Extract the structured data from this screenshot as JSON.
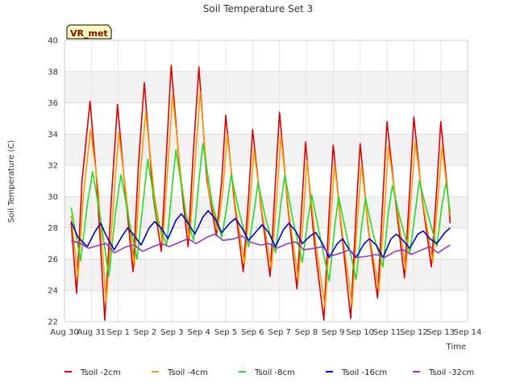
{
  "chart_data": {
    "type": "line",
    "title": "Soil Temperature Set 3",
    "xlabel": "Time",
    "ylabel": "Soil Temperature (C)",
    "badge": "VR_met",
    "ylim": [
      22,
      40
    ],
    "yticks": [
      "22",
      "24",
      "26",
      "28",
      "30",
      "32",
      "34",
      "36",
      "38",
      "40"
    ],
    "x_range": [
      0,
      15
    ],
    "xtick_labels": [
      "Aug 30",
      "Aug 31",
      "Sep 1",
      "Sep 2",
      "Sep 3",
      "Sep 4",
      "Sep 5",
      "Sep 6",
      "Sep 7",
      "Sep 8",
      "Sep 9",
      "Sep 10",
      "Sep 11",
      "Sep 12",
      "Sep 13",
      "Sep 14"
    ],
    "grid": true,
    "legend_position": "bottom",
    "series": [
      {
        "name": "Tsoil -2cm",
        "color": "#dd0000",
        "points": [
          [
            0.25,
            28.3
          ],
          [
            0.45,
            23.8
          ],
          [
            0.65,
            31.0
          ],
          [
            0.95,
            36.1
          ],
          [
            1.2,
            31.0
          ],
          [
            1.5,
            22.1
          ],
          [
            1.75,
            30.0
          ],
          [
            1.97,
            35.9
          ],
          [
            2.25,
            30.5
          ],
          [
            2.55,
            25.2
          ],
          [
            2.75,
            32.0
          ],
          [
            2.97,
            37.3
          ],
          [
            3.3,
            30.0
          ],
          [
            3.6,
            26.5
          ],
          [
            3.8,
            33.0
          ],
          [
            3.97,
            38.4
          ],
          [
            4.3,
            31.5
          ],
          [
            4.6,
            26.8
          ],
          [
            4.8,
            33.0
          ],
          [
            5.0,
            38.3
          ],
          [
            5.3,
            31.0
          ],
          [
            5.65,
            27.5
          ],
          [
            5.85,
            31.0
          ],
          [
            6.0,
            35.2
          ],
          [
            6.3,
            30.0
          ],
          [
            6.65,
            25.2
          ],
          [
            6.85,
            30.0
          ],
          [
            7.0,
            34.3
          ],
          [
            7.3,
            29.5
          ],
          [
            7.65,
            24.9
          ],
          [
            7.85,
            31.0
          ],
          [
            8.0,
            35.4
          ],
          [
            8.3,
            29.5
          ],
          [
            8.65,
            24.1
          ],
          [
            8.85,
            30.0
          ],
          [
            8.97,
            33.5
          ],
          [
            9.3,
            27.0
          ],
          [
            9.65,
            22.1
          ],
          [
            9.85,
            29.0
          ],
          [
            10.0,
            33.3
          ],
          [
            10.3,
            28.0
          ],
          [
            10.65,
            22.2
          ],
          [
            10.85,
            29.0
          ],
          [
            11.0,
            33.4
          ],
          [
            11.3,
            28.0
          ],
          [
            11.65,
            23.5
          ],
          [
            11.85,
            30.0
          ],
          [
            12.0,
            34.8
          ],
          [
            12.3,
            30.0
          ],
          [
            12.65,
            24.8
          ],
          [
            12.85,
            30.5
          ],
          [
            13.0,
            35.1
          ],
          [
            13.3,
            30.0
          ],
          [
            13.65,
            25.5
          ],
          [
            13.85,
            30.5
          ],
          [
            14.0,
            34.8
          ],
          [
            14.3,
            29.5
          ],
          [
            14.35,
            28.3
          ]
        ]
      },
      {
        "name": "Tsoil -4cm",
        "color": "#ff9900",
        "points": [
          [
            0.25,
            28.8
          ],
          [
            0.5,
            24.8
          ],
          [
            0.7,
            30.0
          ],
          [
            0.97,
            34.3
          ],
          [
            1.25,
            30.5
          ],
          [
            1.55,
            23.2
          ],
          [
            1.8,
            29.0
          ],
          [
            2.02,
            34.1
          ],
          [
            2.3,
            30.0
          ],
          [
            2.6,
            25.5
          ],
          [
            2.8,
            31.0
          ],
          [
            3.02,
            35.4
          ],
          [
            3.35,
            30.0
          ],
          [
            3.65,
            27.0
          ],
          [
            3.85,
            32.0
          ],
          [
            4.02,
            36.5
          ],
          [
            4.35,
            31.0
          ],
          [
            4.65,
            27.2
          ],
          [
            4.85,
            32.0
          ],
          [
            5.05,
            36.7
          ],
          [
            5.35,
            30.5
          ],
          [
            5.7,
            27.8
          ],
          [
            5.9,
            30.5
          ],
          [
            6.05,
            34.0
          ],
          [
            6.35,
            29.5
          ],
          [
            6.7,
            25.7
          ],
          [
            6.9,
            29.5
          ],
          [
            7.05,
            33.0
          ],
          [
            7.35,
            29.0
          ],
          [
            7.7,
            25.4
          ],
          [
            7.9,
            30.0
          ],
          [
            8.05,
            33.9
          ],
          [
            8.35,
            29.0
          ],
          [
            8.7,
            24.7
          ],
          [
            8.9,
            29.0
          ],
          [
            9.02,
            32.3
          ],
          [
            9.35,
            27.0
          ],
          [
            9.7,
            22.9
          ],
          [
            9.9,
            28.5
          ],
          [
            10.05,
            32.0
          ],
          [
            10.35,
            27.5
          ],
          [
            10.7,
            23.0
          ],
          [
            10.9,
            28.5
          ],
          [
            11.05,
            32.0
          ],
          [
            11.35,
            27.5
          ],
          [
            11.7,
            24.0
          ],
          [
            11.9,
            29.0
          ],
          [
            12.05,
            33.2
          ],
          [
            12.35,
            29.5
          ],
          [
            12.7,
            25.3
          ],
          [
            12.9,
            30.0
          ],
          [
            13.05,
            33.5
          ],
          [
            13.35,
            29.5
          ],
          [
            13.7,
            25.8
          ],
          [
            13.9,
            30.0
          ],
          [
            14.05,
            33.2
          ],
          [
            14.35,
            28.8
          ]
        ]
      },
      {
        "name": "Tsoil -8cm",
        "color": "#22dd22",
        "points": [
          [
            0.25,
            29.3
          ],
          [
            0.6,
            25.9
          ],
          [
            0.85,
            29.5
          ],
          [
            1.05,
            31.6
          ],
          [
            1.35,
            28.5
          ],
          [
            1.65,
            24.9
          ],
          [
            1.9,
            29.0
          ],
          [
            2.1,
            31.4
          ],
          [
            2.4,
            28.5
          ],
          [
            2.7,
            26.0
          ],
          [
            2.95,
            30.0
          ],
          [
            3.1,
            32.4
          ],
          [
            3.45,
            28.5
          ],
          [
            3.8,
            26.9
          ],
          [
            4.0,
            30.5
          ],
          [
            4.15,
            33.0
          ],
          [
            4.5,
            29.0
          ],
          [
            4.8,
            27.2
          ],
          [
            5.0,
            31.0
          ],
          [
            5.15,
            33.4
          ],
          [
            5.5,
            29.5
          ],
          [
            5.85,
            27.4
          ],
          [
            6.05,
            29.5
          ],
          [
            6.2,
            31.4
          ],
          [
            6.5,
            29.0
          ],
          [
            6.85,
            26.8
          ],
          [
            7.05,
            29.0
          ],
          [
            7.2,
            30.9
          ],
          [
            7.5,
            28.5
          ],
          [
            7.85,
            26.4
          ],
          [
            8.05,
            29.5
          ],
          [
            8.2,
            31.4
          ],
          [
            8.5,
            28.5
          ],
          [
            8.85,
            25.8
          ],
          [
            9.05,
            28.5
          ],
          [
            9.2,
            30.1
          ],
          [
            9.5,
            27.5
          ],
          [
            9.85,
            24.6
          ],
          [
            10.05,
            28.0
          ],
          [
            10.2,
            30.0
          ],
          [
            10.5,
            27.5
          ],
          [
            10.85,
            24.7
          ],
          [
            11.05,
            28.0
          ],
          [
            11.2,
            29.9
          ],
          [
            11.5,
            27.5
          ],
          [
            11.85,
            25.5
          ],
          [
            12.05,
            29.0
          ],
          [
            12.2,
            30.7
          ],
          [
            12.5,
            28.5
          ],
          [
            12.85,
            26.4
          ],
          [
            13.05,
            29.0
          ],
          [
            13.2,
            31.0
          ],
          [
            13.5,
            29.0
          ],
          [
            13.85,
            26.8
          ],
          [
            14.05,
            29.5
          ],
          [
            14.2,
            30.9
          ],
          [
            14.35,
            29.0
          ]
        ]
      },
      {
        "name": "Tsoil -16cm",
        "color": "#0000cc",
        "points": [
          [
            0.25,
            28.4
          ],
          [
            0.5,
            27.4
          ],
          [
            0.85,
            26.8
          ],
          [
            1.15,
            27.8
          ],
          [
            1.35,
            28.3
          ],
          [
            1.55,
            27.5
          ],
          [
            1.85,
            26.6
          ],
          [
            2.15,
            27.5
          ],
          [
            2.35,
            28.0
          ],
          [
            2.6,
            27.5
          ],
          [
            2.85,
            26.9
          ],
          [
            3.15,
            28.0
          ],
          [
            3.35,
            28.4
          ],
          [
            3.6,
            28.0
          ],
          [
            3.85,
            27.3
          ],
          [
            4.15,
            28.5
          ],
          [
            4.35,
            28.9
          ],
          [
            4.6,
            28.3
          ],
          [
            4.85,
            27.6
          ],
          [
            5.15,
            28.7
          ],
          [
            5.35,
            29.1
          ],
          [
            5.6,
            28.6
          ],
          [
            5.85,
            27.7
          ],
          [
            6.15,
            28.3
          ],
          [
            6.35,
            28.6
          ],
          [
            6.6,
            28.0
          ],
          [
            6.85,
            27.2
          ],
          [
            7.15,
            27.8
          ],
          [
            7.35,
            28.2
          ],
          [
            7.6,
            27.7
          ],
          [
            7.85,
            26.8
          ],
          [
            8.15,
            27.9
          ],
          [
            8.35,
            28.3
          ],
          [
            8.6,
            27.8
          ],
          [
            8.85,
            27.0
          ],
          [
            9.15,
            27.5
          ],
          [
            9.35,
            27.7
          ],
          [
            9.6,
            27.0
          ],
          [
            9.85,
            26.1
          ],
          [
            10.15,
            27.0
          ],
          [
            10.35,
            27.3
          ],
          [
            10.6,
            26.6
          ],
          [
            10.85,
            26.1
          ],
          [
            11.15,
            27.0
          ],
          [
            11.35,
            27.3
          ],
          [
            11.6,
            26.9
          ],
          [
            11.85,
            26.1
          ],
          [
            12.15,
            27.3
          ],
          [
            12.35,
            27.6
          ],
          [
            12.6,
            27.2
          ],
          [
            12.85,
            26.7
          ],
          [
            13.15,
            27.6
          ],
          [
            13.35,
            27.8
          ],
          [
            13.6,
            27.3
          ],
          [
            13.85,
            27.0
          ],
          [
            14.15,
            27.7
          ],
          [
            14.35,
            28.0
          ]
        ]
      },
      {
        "name": "Tsoil -32cm",
        "color": "#9933cc",
        "points": [
          [
            0.25,
            27.2
          ],
          [
            0.6,
            27.0
          ],
          [
            0.9,
            26.7
          ],
          [
            1.3,
            26.9
          ],
          [
            1.55,
            27.0
          ],
          [
            1.85,
            26.4
          ],
          [
            2.3,
            26.8
          ],
          [
            2.6,
            26.9
          ],
          [
            2.9,
            26.5
          ],
          [
            3.3,
            26.8
          ],
          [
            3.6,
            27.0
          ],
          [
            3.9,
            26.8
          ],
          [
            4.3,
            27.1
          ],
          [
            4.6,
            27.3
          ],
          [
            4.9,
            27.0
          ],
          [
            5.3,
            27.4
          ],
          [
            5.6,
            27.6
          ],
          [
            5.9,
            27.2
          ],
          [
            6.3,
            27.3
          ],
          [
            6.6,
            27.5
          ],
          [
            6.9,
            27.1
          ],
          [
            7.3,
            26.9
          ],
          [
            7.6,
            27.0
          ],
          [
            7.9,
            26.7
          ],
          [
            8.3,
            27.0
          ],
          [
            8.6,
            27.1
          ],
          [
            8.9,
            26.6
          ],
          [
            9.3,
            26.7
          ],
          [
            9.6,
            26.8
          ],
          [
            9.9,
            26.2
          ],
          [
            10.3,
            26.4
          ],
          [
            10.6,
            26.6
          ],
          [
            10.9,
            26.1
          ],
          [
            11.3,
            26.2
          ],
          [
            11.6,
            26.3
          ],
          [
            11.9,
            26.1
          ],
          [
            12.3,
            26.5
          ],
          [
            12.6,
            26.6
          ],
          [
            12.9,
            26.3
          ],
          [
            13.3,
            26.6
          ],
          [
            13.6,
            26.8
          ],
          [
            13.9,
            26.4
          ],
          [
            14.15,
            26.7
          ],
          [
            14.35,
            26.9
          ]
        ]
      }
    ]
  }
}
